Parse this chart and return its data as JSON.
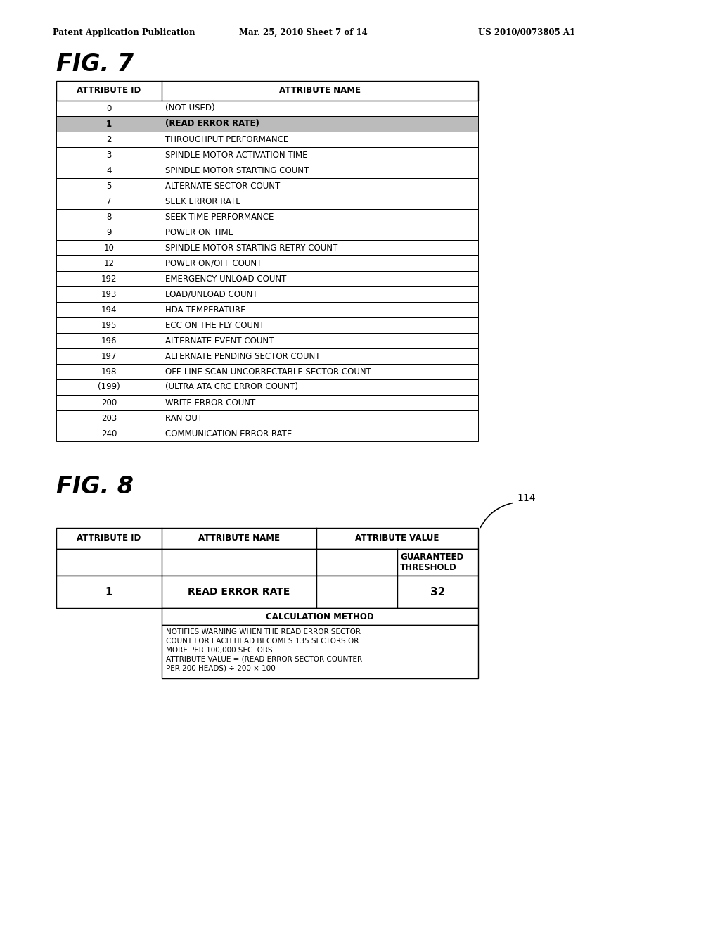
{
  "header_text": "Patent Application Publication",
  "header_date": "Mar. 25, 2010 Sheet 7 of 14",
  "header_patent": "US 2010/0073805 A1",
  "fig7_title": "FIG. 7",
  "fig8_title": "FIG. 8",
  "fig7_col1_header": "ATTRIBUTE ID",
  "fig7_col2_header": "ATTRIBUTE NAME",
  "fig7_rows": [
    [
      "0",
      "(NOT USED)"
    ],
    [
      "1",
      "(READ ERROR RATE)"
    ],
    [
      "2",
      "THROUGHPUT PERFORMANCE"
    ],
    [
      "3",
      "SPINDLE MOTOR ACTIVATION TIME"
    ],
    [
      "4",
      "SPINDLE MOTOR STARTING COUNT"
    ],
    [
      "5",
      "ALTERNATE SECTOR COUNT"
    ],
    [
      "7",
      "SEEK ERROR RATE"
    ],
    [
      "8",
      "SEEK TIME PERFORMANCE"
    ],
    [
      "9",
      "POWER ON TIME"
    ],
    [
      "10",
      "SPINDLE MOTOR STARTING RETRY COUNT"
    ],
    [
      "12",
      "POWER ON/OFF COUNT"
    ],
    [
      "192",
      "EMERGENCY UNLOAD COUNT"
    ],
    [
      "193",
      "LOAD/UNLOAD COUNT"
    ],
    [
      "194",
      "HDA TEMPERATURE"
    ],
    [
      "195",
      "ECC ON THE FLY COUNT"
    ],
    [
      "196",
      "ALTERNATE EVENT COUNT"
    ],
    [
      "197",
      "ALTERNATE PENDING SECTOR COUNT"
    ],
    [
      "198",
      "OFF-LINE SCAN UNCORRECTABLE SECTOR COUNT"
    ],
    [
      "(199)",
      "(ULTRA ATA CRC ERROR COUNT)"
    ],
    [
      "200",
      "WRITE ERROR COUNT"
    ],
    [
      "203",
      "RAN OUT"
    ],
    [
      "240",
      "COMMUNICATION ERROR RATE"
    ]
  ],
  "highlighted_row_index": 1,
  "highlight_color": "#bbbbbb",
  "fig8_label": "114",
  "fig8_col1_header": "ATTRIBUTE ID",
  "fig8_col2_header": "ATTRIBUTE NAME",
  "fig8_col3_header": "ATTRIBUTE VALUE",
  "fig8_col3_subheader": "GUARANTEED\nTHRESHOLD",
  "fig8_data_id": "1",
  "fig8_data_name": "READ ERROR RATE",
  "fig8_data_value": "32",
  "fig8_calc_header": "CALCULATION METHOD",
  "fig8_calc_text": "NOTIFIES WARNING WHEN THE READ ERROR SECTOR\nCOUNT FOR EACH HEAD BECOMES 135 SECTORS OR\nMORE PER 100,000 SECTORS.\nATTRIBUTE VALUE = (READ ERROR SECTOR COUNTER\nPER 200 HEADS) ÷ 200 × 100",
  "bg_color": "#ffffff",
  "text_color": "#000000",
  "line_color": "#000000"
}
